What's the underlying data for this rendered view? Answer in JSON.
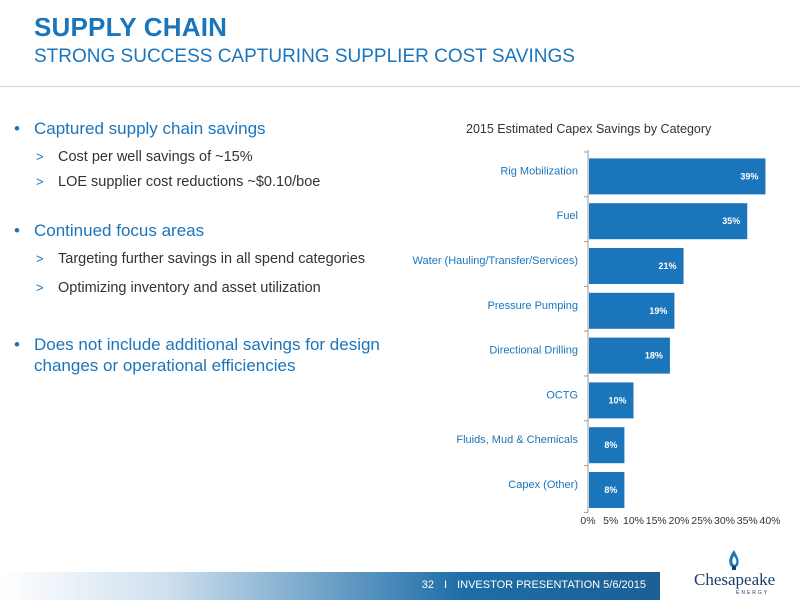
{
  "header": {
    "title": "SUPPLY CHAIN",
    "subtitle": "STRONG SUCCESS CAPTURING SUPPLIER COST SAVINGS"
  },
  "bullets": [
    {
      "text": "Captured supply chain savings",
      "subs": [
        "Cost per well savings of ~15%",
        "LOE supplier cost reductions ~$0.10/boe"
      ]
    },
    {
      "text": "Continued focus areas",
      "subs": [
        "Targeting further savings in all spend categories",
        "Optimizing inventory and asset utilization"
      ]
    },
    {
      "text": "Does not include additional savings for design changes or operational efficiencies",
      "subs": []
    }
  ],
  "chart_data": {
    "type": "bar",
    "orientation": "horizontal",
    "title": "2015 Estimated Capex Savings by Category",
    "categories": [
      "Rig Mobilization",
      "Fuel",
      "Water (Hauling/Transfer/Services)",
      "Pressure Pumping",
      "Directional Drilling",
      "OCTG",
      "Fluids, Mud & Chemicals",
      "Capex (Other)"
    ],
    "values": [
      39,
      35,
      21,
      19,
      18,
      10,
      8,
      8
    ],
    "data_labels": [
      "39%",
      "35%",
      "21%",
      "19%",
      "18%",
      "10%",
      "8%",
      "8%"
    ],
    "xlim": [
      0,
      40
    ],
    "xticks": [
      "0%",
      "5%",
      "10%",
      "15%",
      "20%",
      "25%",
      "30%",
      "35%",
      "40%"
    ],
    "bar_color": "#1b75bb",
    "grid": false
  },
  "footer": {
    "page": "32",
    "separator": "I",
    "text": "INVESTOR PRESENTATION 5/6/2015"
  },
  "logo": {
    "name": "Chesapeake",
    "sub": "ENERGY"
  },
  "colors": {
    "accent": "#1b75bb",
    "footer_dark": "#1b5f95"
  }
}
